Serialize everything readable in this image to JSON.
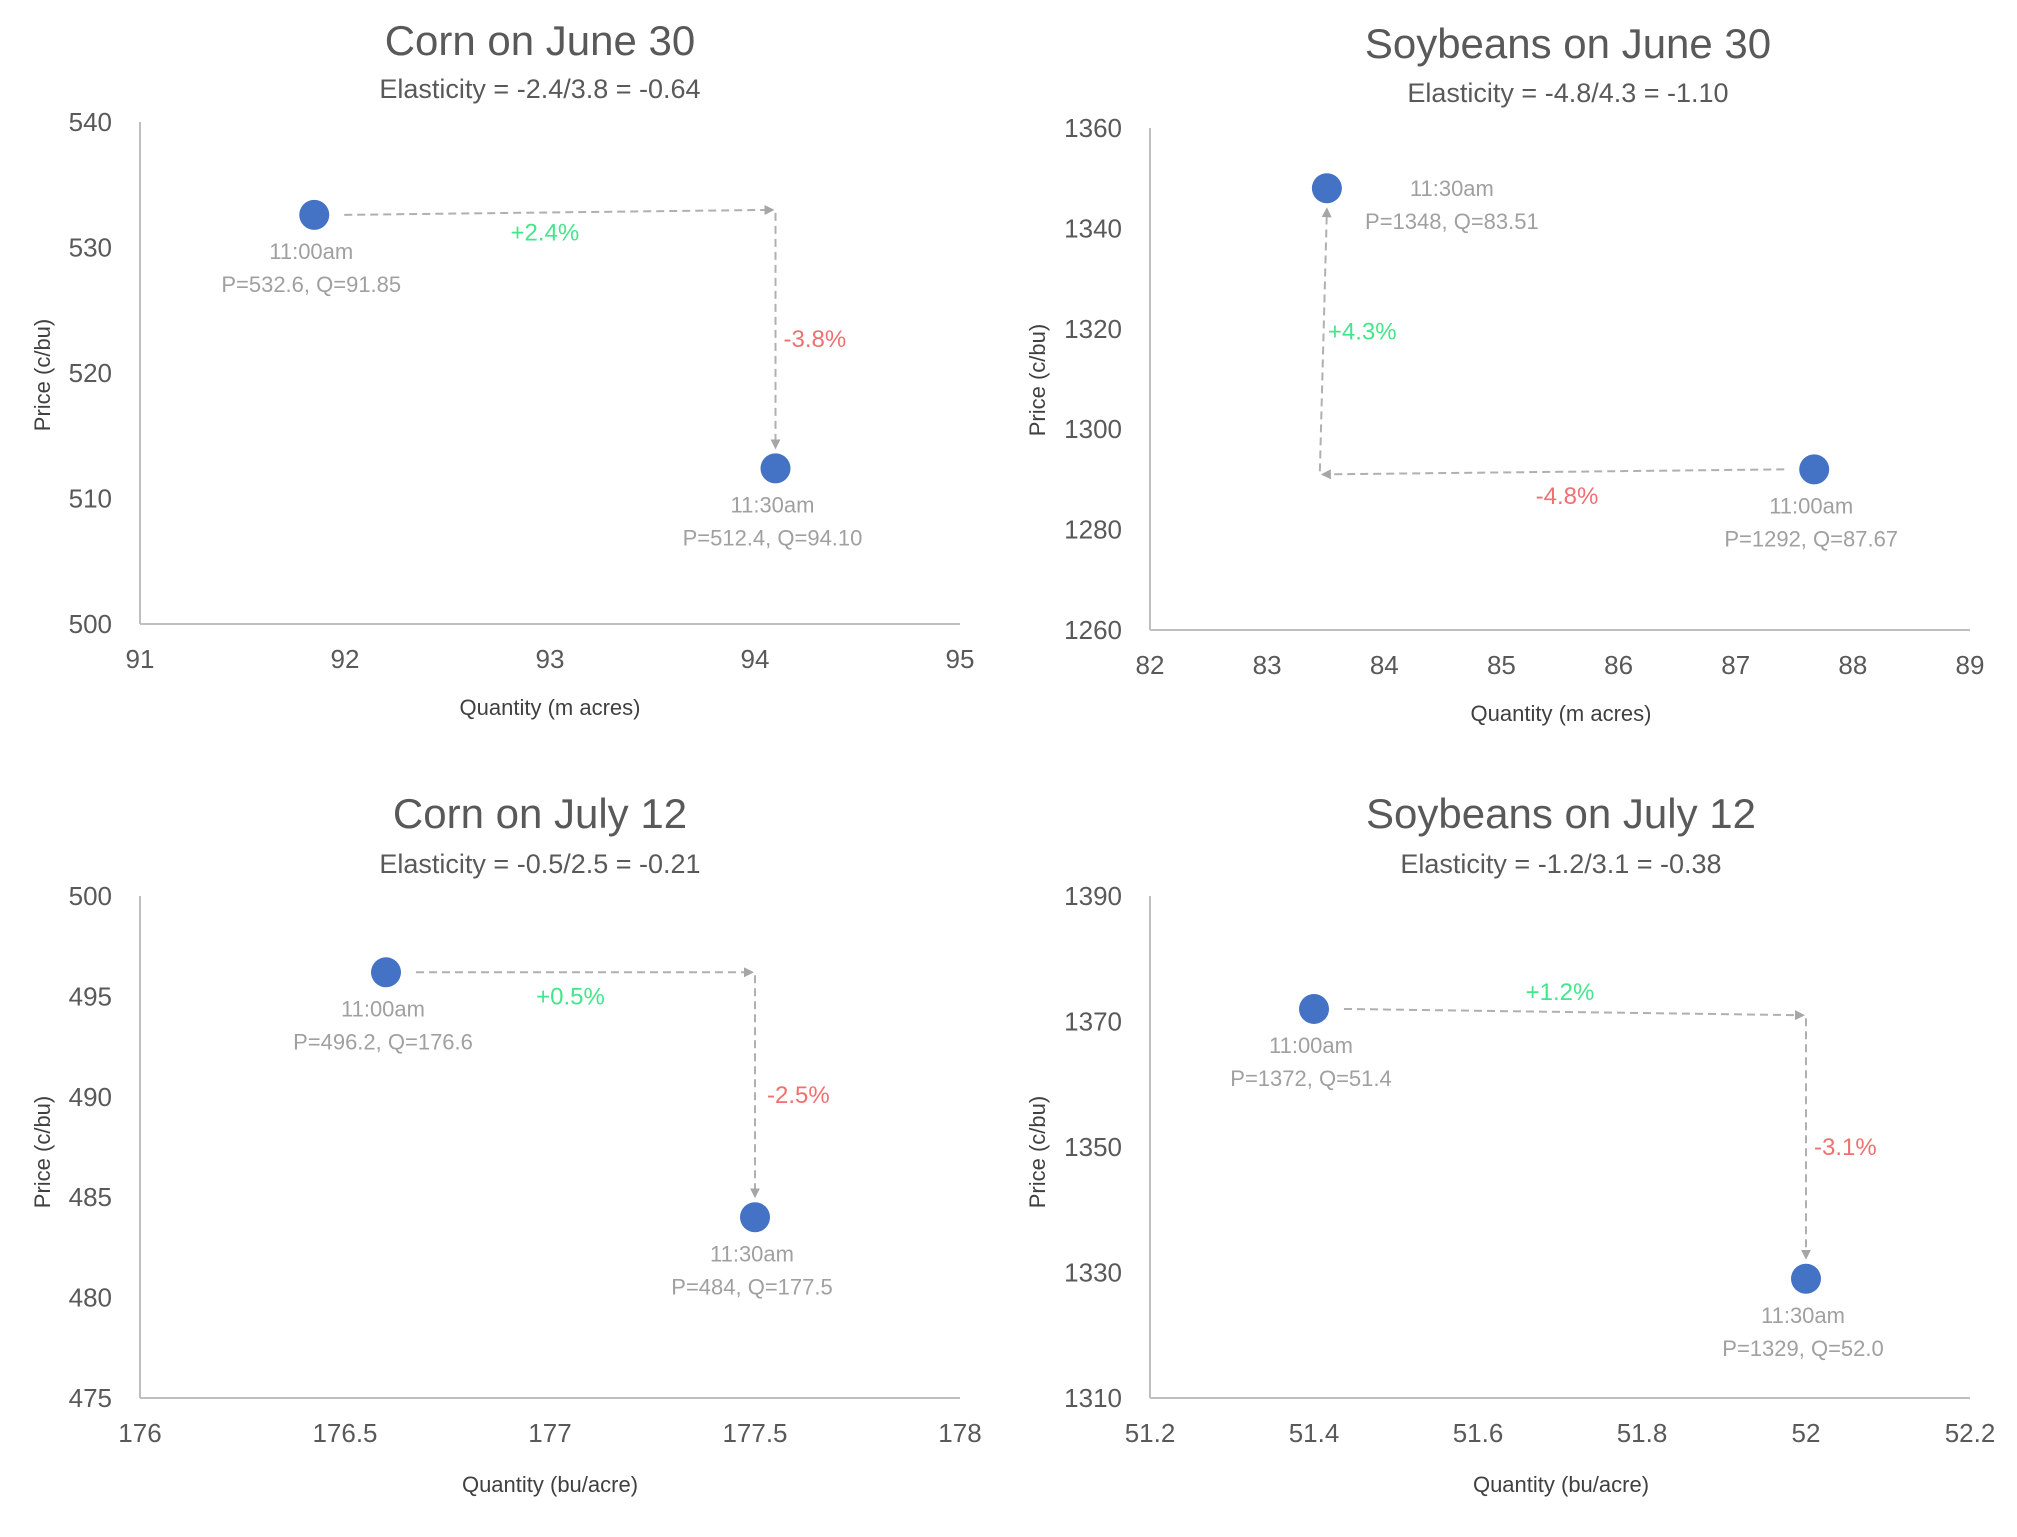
{
  "chart_data": [
    {
      "type": "scatter",
      "title": "Corn on June 30",
      "subtitle": "Elasticity = -2.4/3.8 = -0.64",
      "xlabel": "Quantity (m acres)",
      "ylabel": "Price (c/bu)",
      "xlim": [
        91,
        95
      ],
      "ylim": [
        500,
        540
      ],
      "xticks": [
        "91",
        "92",
        "93",
        "94",
        "95"
      ],
      "yticks": [
        "500",
        "510",
        "520",
        "530",
        "540"
      ],
      "points": [
        {
          "x": 91.85,
          "y": 532.6,
          "time": "11:00am",
          "label": "P=532.6, Q=91.85"
        },
        {
          "x": 94.1,
          "y": 512.4,
          "time": "11:30am",
          "label": "P=512.4, Q=94.10"
        }
      ],
      "corner": {
        "x": 94.1,
        "y": 533
      },
      "horizontal_change": "+2.4%",
      "vertical_change": "-3.8%"
    },
    {
      "type": "scatter",
      "title": "Soybeans on June 30",
      "subtitle": "Elasticity = -4.8/4.3 = -1.10",
      "xlabel": "Quantity (m acres)",
      "ylabel": "Price (c/bu)",
      "xlim": [
        82,
        89
      ],
      "ylim": [
        1260,
        1360
      ],
      "xticks": [
        "82",
        "83",
        "84",
        "85",
        "86",
        "87",
        "88",
        "89"
      ],
      "yticks": [
        "1260",
        "1280",
        "1300",
        "1320",
        "1340",
        "1360"
      ],
      "points": [
        {
          "x": 87.67,
          "y": 1292,
          "time": "11:00am",
          "label": "P=1292, Q=87.67"
        },
        {
          "x": 83.51,
          "y": 1348,
          "time": "11:30am",
          "label": "P=1348, Q=83.51"
        }
      ],
      "corner": {
        "x": 83.45,
        "y": 1291
      },
      "horizontal_change": "-4.8%",
      "vertical_change": "+4.3%"
    },
    {
      "type": "scatter",
      "title": "Corn on July 12",
      "subtitle": "Elasticity = -0.5/2.5 = -0.21",
      "xlabel": "Quantity (bu/acre)",
      "ylabel": "Price (c/bu)",
      "xlim": [
        176,
        178
      ],
      "ylim": [
        475,
        500
      ],
      "xticks": [
        "176",
        "176.5",
        "177",
        "177.5",
        "178"
      ],
      "yticks": [
        "475",
        "480",
        "485",
        "490",
        "495",
        "500"
      ],
      "points": [
        {
          "x": 176.6,
          "y": 496.2,
          "time": "11:00am",
          "label": "P=496.2, Q=176.6"
        },
        {
          "x": 177.5,
          "y": 484,
          "time": "11:30am",
          "label": "P=484, Q=177.5"
        }
      ],
      "corner": {
        "x": 177.5,
        "y": 496.2
      },
      "horizontal_change": "+0.5%",
      "vertical_change": "-2.5%"
    },
    {
      "type": "scatter",
      "title": "Soybeans on July 12",
      "subtitle": "Elasticity = -1.2/3.1 = -0.38",
      "xlabel": "Quantity (bu/acre)",
      "ylabel": "Price (c/bu)",
      "xlim": [
        51.2,
        52.2
      ],
      "ylim": [
        1310,
        1390
      ],
      "xticks": [
        "51.2",
        "51.4",
        "51.6",
        "51.8",
        "52",
        "52.2"
      ],
      "yticks": [
        "1310",
        "1330",
        "1350",
        "1370",
        "1390"
      ],
      "points": [
        {
          "x": 51.4,
          "y": 1372,
          "time": "11:00am",
          "label": "P=1372, Q=51.4"
        },
        {
          "x": 52.0,
          "y": 1329,
          "time": "11:30am",
          "label": "P=1329, Q=52.0"
        }
      ],
      "corner": {
        "x": 52.0,
        "y": 1371
      },
      "horizontal_change": "+1.2%",
      "vertical_change": "-3.1%"
    }
  ],
  "colors": {
    "point": "#4472c4",
    "increase": "#44e68c",
    "decrease": "#f07070",
    "arrow": "#b0b0b0",
    "axis": "#bfbfbf"
  }
}
